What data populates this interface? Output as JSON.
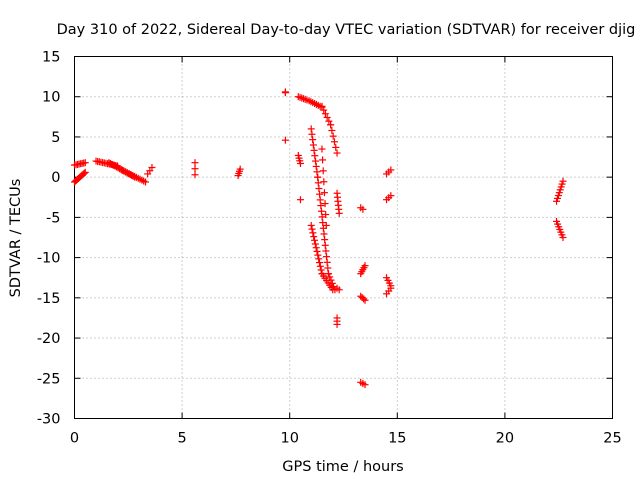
{
  "chart_data": {
    "type": "scatter",
    "title": "Day 310 of 2022, Sidereal Day-to-day VTEC variation (SDTVAR) for receiver djig",
    "xlabel": "GPS time / hours",
    "ylabel": "SDTVAR / TECUs",
    "xlim": [
      0,
      25
    ],
    "ylim": [
      -30,
      15
    ],
    "xticks": [
      0,
      5,
      10,
      15,
      20,
      25
    ],
    "yticks": [
      -30,
      -25,
      -20,
      -15,
      -10,
      -5,
      0,
      5,
      10,
      15
    ],
    "grid": true,
    "marker": "plus",
    "color": "#ff0000",
    "segments": [
      {
        "x0": 0.0,
        "x1": 0.5,
        "y0": -0.6,
        "y1": 0.6,
        "n": 12
      },
      {
        "x0": 0.0,
        "x1": 0.5,
        "y0": 1.5,
        "y1": 1.8,
        "n": 8
      },
      {
        "x0": 1.0,
        "x1": 2.0,
        "y0": 2.0,
        "y1": 1.4,
        "n": 14
      },
      {
        "x0": 1.6,
        "x1": 2.8,
        "y0": 1.8,
        "y1": 0.0,
        "n": 18
      },
      {
        "x0": 2.2,
        "x1": 3.3,
        "y0": 0.9,
        "y1": -0.6,
        "n": 14
      },
      {
        "x0": 3.4,
        "x1": 3.6,
        "y0": 0.4,
        "y1": 1.2,
        "n": 3
      },
      {
        "x0": 5.6,
        "x1": 5.6,
        "y0": 0.3,
        "y1": 1.8,
        "n": 3
      },
      {
        "x0": 7.6,
        "x1": 7.7,
        "y0": 0.2,
        "y1": 1.0,
        "n": 4
      },
      {
        "x0": 9.8,
        "x1": 9.8,
        "y0": 10.5,
        "y1": 10.6,
        "n": 2
      },
      {
        "x0": 9.8,
        "x1": 9.8,
        "y0": 4.6,
        "y1": 4.6,
        "n": 1
      },
      {
        "x0": 10.4,
        "x1": 10.8,
        "y0": 10.0,
        "y1": 9.6,
        "n": 6
      },
      {
        "x0": 10.4,
        "x1": 10.5,
        "y0": 2.7,
        "y1": 1.7,
        "n": 4
      },
      {
        "x0": 10.5,
        "x1": 10.5,
        "y0": -2.8,
        "y1": -2.8,
        "n": 1
      },
      {
        "x0": 10.9,
        "x1": 11.5,
        "y0": 9.5,
        "y1": 8.7,
        "n": 8
      },
      {
        "x0": 11.5,
        "x1": 11.9,
        "y0": 8.8,
        "y1": 6.5,
        "n": 6
      },
      {
        "x0": 11.9,
        "x1": 12.2,
        "y0": 6.5,
        "y1": 3.0,
        "n": 6
      },
      {
        "x0": 11.0,
        "x1": 11.3,
        "y0": 6.0,
        "y1": 0.0,
        "n": 10
      },
      {
        "x0": 11.3,
        "x1": 11.8,
        "y0": 0.0,
        "y1": -12.0,
        "n": 18
      },
      {
        "x0": 11.8,
        "x1": 12.1,
        "y0": -12.0,
        "y1": -14.0,
        "n": 6
      },
      {
        "x0": 11.0,
        "x1": 11.5,
        "y0": -6.0,
        "y1": -12.0,
        "n": 14
      },
      {
        "x0": 11.5,
        "x1": 12.0,
        "y0": -12.0,
        "y1": -14.0,
        "n": 8
      },
      {
        "x0": 11.5,
        "x1": 11.7,
        "y0": 3.5,
        "y1": -6.0,
        "n": 8
      },
      {
        "x0": 12.2,
        "x1": 12.3,
        "y0": -2.0,
        "y1": -4.5,
        "n": 6
      },
      {
        "x0": 12.2,
        "x1": 12.3,
        "y0": -13.8,
        "y1": -14.0,
        "n": 2
      },
      {
        "x0": 12.2,
        "x1": 12.2,
        "y0": -17.5,
        "y1": -18.3,
        "n": 3
      },
      {
        "x0": 13.3,
        "x1": 13.4,
        "y0": -3.8,
        "y1": -4.0,
        "n": 2
      },
      {
        "x0": 13.3,
        "x1": 13.5,
        "y0": -12.0,
        "y1": -11.0,
        "n": 5
      },
      {
        "x0": 13.3,
        "x1": 13.5,
        "y0": -14.8,
        "y1": -15.3,
        "n": 4
      },
      {
        "x0": 13.3,
        "x1": 13.5,
        "y0": -25.5,
        "y1": -25.8,
        "n": 3
      },
      {
        "x0": 14.5,
        "x1": 14.7,
        "y0": 0.4,
        "y1": 0.9,
        "n": 3
      },
      {
        "x0": 14.5,
        "x1": 14.7,
        "y0": -2.8,
        "y1": -2.3,
        "n": 3
      },
      {
        "x0": 14.5,
        "x1": 14.7,
        "y0": -12.5,
        "y1": -13.5,
        "n": 4
      },
      {
        "x0": 14.5,
        "x1": 14.7,
        "y0": -14.5,
        "y1": -13.8,
        "n": 3
      },
      {
        "x0": 22.4,
        "x1": 22.7,
        "y0": -3.0,
        "y1": -0.5,
        "n": 8
      },
      {
        "x0": 22.4,
        "x1": 22.7,
        "y0": -5.5,
        "y1": -7.5,
        "n": 7
      }
    ]
  }
}
